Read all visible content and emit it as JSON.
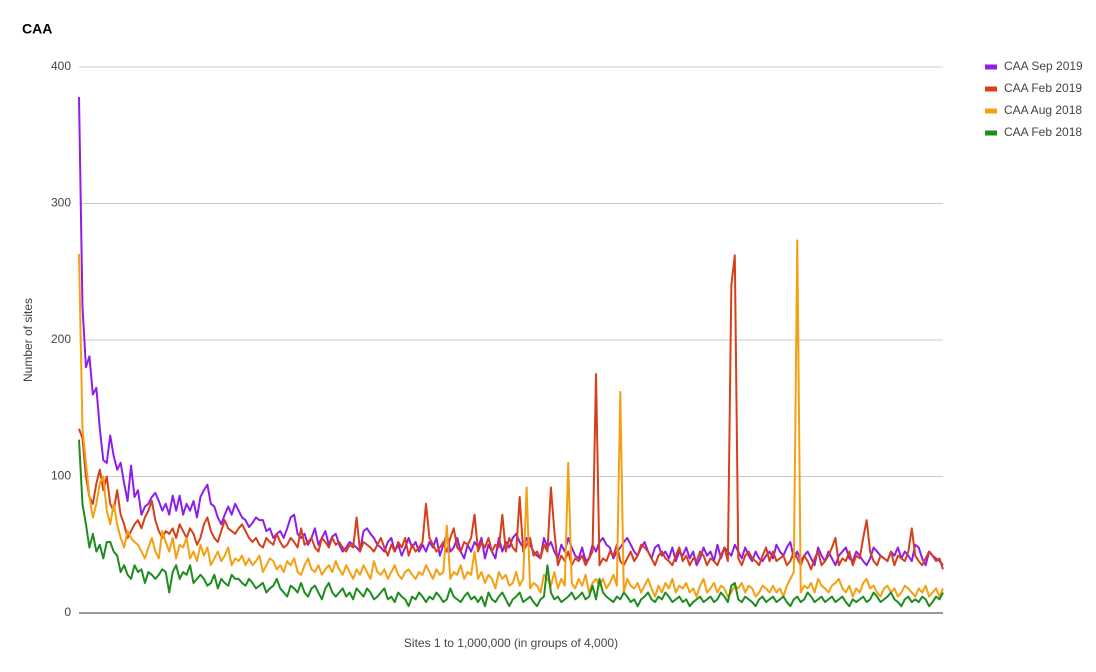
{
  "chart_data": {
    "type": "line",
    "title": "CAA",
    "x_label": "Sites 1 to 1,000,000 (in groups of 4,000)",
    "y_label": "Number of sites",
    "ylim": [
      0,
      400
    ],
    "yticks": [
      0,
      100,
      200,
      300,
      400
    ],
    "grid": true,
    "legend": "right",
    "categories": [
      null,
      null,
      null,
      null,
      null,
      null,
      null,
      null,
      null,
      null,
      null,
      null,
      null,
      null,
      null,
      null,
      null,
      null,
      null,
      null,
      null,
      null,
      null,
      null,
      null,
      null,
      null,
      null,
      null,
      null,
      null,
      null,
      null,
      null,
      null,
      null,
      null,
      null,
      null,
      null,
      null,
      null,
      null,
      null,
      null,
      null,
      null,
      null,
      null,
      null,
      null,
      null,
      null,
      null,
      null,
      null,
      null,
      null,
      null,
      null,
      null,
      null,
      null,
      null,
      null,
      null,
      null,
      null,
      null,
      null,
      null,
      null,
      null,
      null,
      null,
      null,
      null,
      null,
      null,
      null,
      null,
      null,
      null,
      null,
      null,
      null,
      null,
      null,
      null,
      null,
      null,
      null,
      null,
      null,
      null,
      null,
      null,
      null,
      null,
      null,
      null,
      null,
      null,
      null,
      null,
      null,
      null,
      null,
      null,
      null,
      null,
      null,
      null,
      null,
      null,
      null,
      null,
      null,
      null,
      null,
      null,
      null,
      null,
      null,
      null,
      null,
      null,
      null,
      null,
      null,
      null,
      null,
      null,
      null,
      null,
      null,
      null,
      null,
      null,
      null,
      null,
      null,
      null,
      null,
      null,
      null,
      null,
      null,
      null,
      null,
      null,
      null,
      null,
      null,
      null,
      null,
      null,
      null,
      null,
      null,
      null,
      null,
      null,
      null,
      null,
      null,
      null,
      null,
      null,
      null,
      null,
      null,
      null,
      null,
      null,
      null,
      null,
      null,
      null,
      null,
      null,
      null,
      null,
      null,
      null,
      null,
      null,
      null,
      null,
      null,
      null,
      null,
      null,
      null,
      null,
      null,
      null,
      null,
      null,
      null,
      null,
      null,
      null,
      null,
      null,
      null,
      null,
      null,
      null,
      null,
      null,
      null,
      null,
      null,
      null,
      null,
      null,
      null,
      null,
      null,
      null,
      null,
      null,
      null,
      null,
      null,
      null,
      null,
      null,
      null,
      null,
      null,
      null,
      null,
      null,
      null,
      null,
      null,
      null,
      null,
      null,
      null,
      null,
      null,
      null,
      null,
      null,
      null,
      null,
      null
    ],
    "series": [
      {
        "name": "CAA Sep 2019",
        "color": "#8f1ee8",
        "values": [
          378,
          225,
          180,
          188,
          160,
          165,
          135,
          112,
          110,
          130,
          115,
          105,
          110,
          95,
          82,
          108,
          85,
          90,
          72,
          78,
          80,
          85,
          88,
          82,
          75,
          80,
          72,
          86,
          75,
          86,
          72,
          80,
          75,
          82,
          70,
          85,
          90,
          94,
          80,
          78,
          70,
          65,
          72,
          78,
          72,
          80,
          75,
          70,
          68,
          63,
          66,
          70,
          68,
          68,
          60,
          62,
          55,
          58,
          60,
          55,
          62,
          70,
          72,
          58,
          55,
          58,
          50,
          55,
          62,
          50,
          55,
          60,
          50,
          56,
          58,
          50,
          45,
          48,
          52,
          50,
          48,
          45,
          60,
          62,
          58,
          55,
          50,
          48,
          45,
          52,
          55,
          45,
          50,
          42,
          48,
          55,
          48,
          52,
          45,
          50,
          45,
          52,
          48,
          55,
          42,
          50,
          58,
          45,
          48,
          55,
          45,
          40,
          50,
          45,
          52,
          48,
          55,
          40,
          50,
          45,
          40,
          55,
          45,
          52,
          48,
          55,
          58,
          52,
          48,
          55,
          50,
          45,
          42,
          40,
          55,
          48,
          52,
          45,
          40,
          50,
          45,
          55,
          48,
          42,
          40,
          48,
          38,
          40,
          50,
          45,
          52,
          55,
          50,
          48,
          40,
          45,
          48,
          52,
          55,
          50,
          45,
          42,
          48,
          52,
          45,
          40,
          48,
          50,
          42,
          45,
          40,
          48,
          38,
          45,
          42,
          48,
          40,
          45,
          35,
          40,
          48,
          42,
          45,
          38,
          50,
          40,
          48,
          45,
          42,
          50,
          45,
          40,
          48,
          42,
          38,
          45,
          40,
          38,
          42,
          45,
          40,
          50,
          45,
          42,
          48,
          52,
          40,
          45,
          38,
          42,
          45,
          40,
          35,
          48,
          42,
          38,
          45,
          40,
          35,
          42,
          45,
          48,
          40,
          38,
          45,
          42,
          38,
          35,
          40,
          48,
          45,
          42,
          40,
          38,
          45,
          42,
          48,
          40,
          45,
          42,
          38,
          50,
          48,
          40,
          35,
          45,
          42,
          40,
          38,
          35
        ]
      },
      {
        "name": "CAA Feb 2019",
        "color": "#d5401b",
        "values": [
          135,
          128,
          100,
          85,
          80,
          95,
          105,
          90,
          100,
          80,
          75,
          90,
          72,
          65,
          55,
          60,
          65,
          68,
          62,
          70,
          75,
          82,
          68,
          60,
          55,
          60,
          58,
          62,
          55,
          65,
          60,
          55,
          62,
          58,
          50,
          55,
          65,
          70,
          60,
          55,
          52,
          60,
          68,
          62,
          60,
          58,
          62,
          65,
          60,
          55,
          52,
          55,
          50,
          48,
          55,
          52,
          50,
          58,
          52,
          48,
          50,
          55,
          52,
          48,
          62,
          50,
          52,
          55,
          48,
          45,
          55,
          52,
          48,
          55,
          50,
          52,
          48,
          45,
          50,
          48,
          70,
          45,
          52,
          50,
          48,
          45,
          50,
          55,
          48,
          42,
          50,
          45,
          52,
          48,
          55,
          42,
          50,
          45,
          48,
          52,
          80,
          55,
          50,
          45,
          48,
          52,
          45,
          55,
          62,
          48,
          45,
          52,
          50,
          55,
          72,
          45,
          52,
          48,
          55,
          45,
          50,
          48,
          72,
          45,
          55,
          48,
          45,
          85,
          45,
          50,
          55,
          42,
          45,
          40,
          50,
          45,
          92,
          60,
          35,
          42,
          38,
          45,
          35,
          40,
          38,
          42,
          35,
          40,
          45,
          175,
          35,
          40,
          38,
          45,
          42,
          50,
          38,
          35,
          40,
          45,
          38,
          42,
          50,
          48,
          45,
          40,
          35,
          42,
          45,
          40,
          38,
          35,
          42,
          48,
          38,
          42,
          35,
          40,
          38,
          45,
          42,
          35,
          40,
          38,
          35,
          42,
          48,
          38,
          240,
          262,
          40,
          35,
          42,
          45,
          40,
          38,
          35,
          42,
          48,
          38,
          45,
          38,
          40,
          42,
          35,
          38,
          45,
          40,
          35,
          42,
          38,
          32,
          40,
          45,
          35,
          38,
          42,
          48,
          55,
          35,
          40,
          38,
          45,
          35,
          42,
          40,
          55,
          68,
          45,
          38,
          35,
          42,
          40,
          38,
          45,
          35,
          42,
          40,
          38,
          45,
          62,
          42,
          38,
          35,
          40,
          45,
          42,
          38,
          40,
          32
        ]
      },
      {
        "name": "CAA Aug 2018",
        "color": "#f4a012",
        "values": [
          263,
          135,
          110,
          85,
          70,
          80,
          95,
          100,
          75,
          65,
          80,
          65,
          55,
          48,
          60,
          55,
          52,
          50,
          45,
          40,
          48,
          55,
          45,
          40,
          60,
          52,
          45,
          55,
          40,
          50,
          48,
          55,
          40,
          45,
          38,
          50,
          42,
          48,
          35,
          40,
          45,
          38,
          42,
          48,
          35,
          40,
          38,
          42,
          35,
          40,
          35,
          38,
          42,
          30,
          35,
          40,
          38,
          32,
          35,
          30,
          38,
          35,
          40,
          30,
          28,
          35,
          40,
          32,
          30,
          35,
          28,
          32,
          35,
          30,
          38,
          32,
          28,
          35,
          30,
          25,
          32,
          28,
          35,
          30,
          25,
          38,
          30,
          28,
          32,
          25,
          30,
          35,
          28,
          25,
          30,
          32,
          28,
          25,
          30,
          28,
          35,
          30,
          25,
          32,
          28,
          30,
          64,
          25,
          30,
          28,
          35,
          25,
          30,
          28,
          45,
          25,
          30,
          22,
          28,
          25,
          18,
          30,
          25,
          28,
          20,
          22,
          30,
          20,
          25,
          92,
          18,
          22,
          20,
          15,
          28,
          25,
          20,
          30,
          18,
          25,
          20,
          110,
          22,
          18,
          25,
          20,
          28,
          15,
          22,
          25,
          20,
          25,
          18,
          22,
          28,
          20,
          162,
          15,
          25,
          20,
          18,
          22,
          15,
          20,
          25,
          18,
          12,
          20,
          15,
          22,
          18,
          25,
          15,
          20,
          18,
          22,
          15,
          18,
          12,
          20,
          25,
          15,
          18,
          22,
          15,
          20,
          18,
          12,
          15,
          20,
          18,
          22,
          15,
          20,
          18,
          12,
          15,
          20,
          18,
          15,
          20,
          15,
          18,
          12,
          20,
          25,
          30,
          273,
          15,
          20,
          18,
          22,
          15,
          25,
          20,
          18,
          15,
          20,
          22,
          25,
          18,
          15,
          20,
          12,
          18,
          15,
          22,
          25,
          18,
          20,
          15,
          12,
          18,
          20,
          15,
          18,
          12,
          15,
          20,
          18,
          15,
          12,
          18,
          15,
          20,
          12,
          15,
          18,
          12,
          18
        ]
      },
      {
        "name": "CAA Feb 2018",
        "color": "#1e8c1e",
        "values": [
          127,
          80,
          65,
          48,
          58,
          45,
          50,
          40,
          52,
          52,
          45,
          42,
          30,
          35,
          28,
          25,
          35,
          30,
          32,
          22,
          30,
          28,
          25,
          28,
          32,
          30,
          15,
          30,
          35,
          25,
          30,
          28,
          35,
          22,
          25,
          28,
          25,
          20,
          22,
          28,
          18,
          25,
          22,
          20,
          28,
          25,
          25,
          22,
          20,
          25,
          22,
          18,
          20,
          22,
          15,
          18,
          20,
          25,
          18,
          15,
          12,
          20,
          18,
          15,
          22,
          15,
          12,
          18,
          20,
          15,
          10,
          18,
          22,
          15,
          12,
          15,
          18,
          12,
          15,
          10,
          18,
          15,
          12,
          18,
          15,
          10,
          12,
          15,
          18,
          10,
          12,
          8,
          15,
          12,
          10,
          5,
          12,
          10,
          15,
          12,
          8,
          12,
          10,
          15,
          12,
          8,
          10,
          18,
          12,
          10,
          8,
          12,
          15,
          10,
          12,
          8,
          12,
          5,
          15,
          10,
          8,
          12,
          15,
          10,
          5,
          10,
          12,
          15,
          8,
          10,
          12,
          8,
          5,
          10,
          12,
          35,
          15,
          10,
          12,
          8,
          10,
          12,
          15,
          10,
          12,
          15,
          10,
          12,
          20,
          10,
          25,
          15,
          12,
          10,
          8,
          12,
          10,
          15,
          12,
          8,
          10,
          5,
          10,
          12,
          15,
          10,
          8,
          12,
          10,
          15,
          12,
          8,
          10,
          12,
          8,
          10,
          5,
          8,
          10,
          12,
          8,
          10,
          12,
          8,
          10,
          15,
          12,
          8,
          20,
          22,
          10,
          8,
          12,
          10,
          8,
          5,
          10,
          12,
          8,
          10,
          12,
          8,
          10,
          12,
          8,
          5,
          10,
          12,
          8,
          10,
          15,
          12,
          8,
          10,
          12,
          8,
          10,
          12,
          8,
          10,
          12,
          8,
          5,
          10,
          8,
          10,
          12,
          8,
          10,
          15,
          12,
          8,
          10,
          12,
          15,
          10,
          8,
          5,
          10,
          12,
          8,
          10,
          8,
          12,
          10,
          5,
          8,
          12,
          10,
          15
        ]
      }
    ]
  }
}
